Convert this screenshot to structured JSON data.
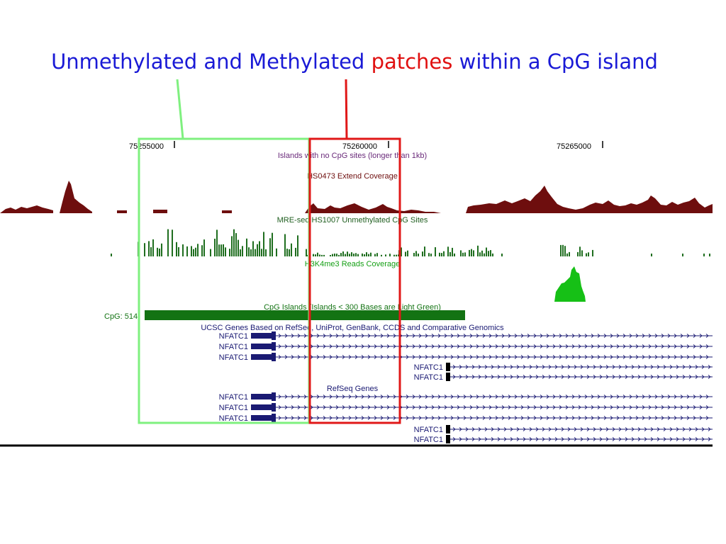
{
  "title": {
    "part1": "Unmethylated and Methylated",
    "highlight": "patches",
    "part2": "within a CpG island"
  },
  "colors": {
    "title_blue": "#1a1ad6",
    "title_red": "#e01010",
    "green_box": "#7ff07f",
    "red_box": "#e01818",
    "coverage_brown": "#6e0e0e",
    "mre_green": "#1f6e1f",
    "h3k4me3_green": "#16c016",
    "cpg_green": "#137313",
    "gene_navy": "#1a1a73"
  },
  "ruler": {
    "positions": [
      "75255000",
      "75260000",
      "75265000"
    ]
  },
  "tracks": {
    "no_cpg": "Islands with no CpG sites (longer than 1kb)",
    "extend": "HS0473 Extend Coverage",
    "mre": "MRE-seq HS1007 Unmethylated CpG Sites",
    "h3k4me3": "H3K4me3 Reads Coverage",
    "cpg_islands": "CpG Islands (Islands < 300 Bases are Light Green)",
    "cpg_item": "CpG: 514",
    "ucsc_genes": "UCSC Genes Based on RefSeq, UniProt, GenBank, CCDS and Comparative Genomics",
    "refseq": "RefSeq Genes"
  },
  "genes": {
    "ucsc_left": [
      "NFATC1",
      "NFATC1",
      "NFATC1"
    ],
    "ucsc_right": [
      "NFATC1",
      "NFATC1"
    ],
    "refseq_left": [
      "NFATC1",
      "NFATC1",
      "NFATC1"
    ],
    "refseq_right": [
      "NFATC1",
      "NFATC1"
    ]
  }
}
